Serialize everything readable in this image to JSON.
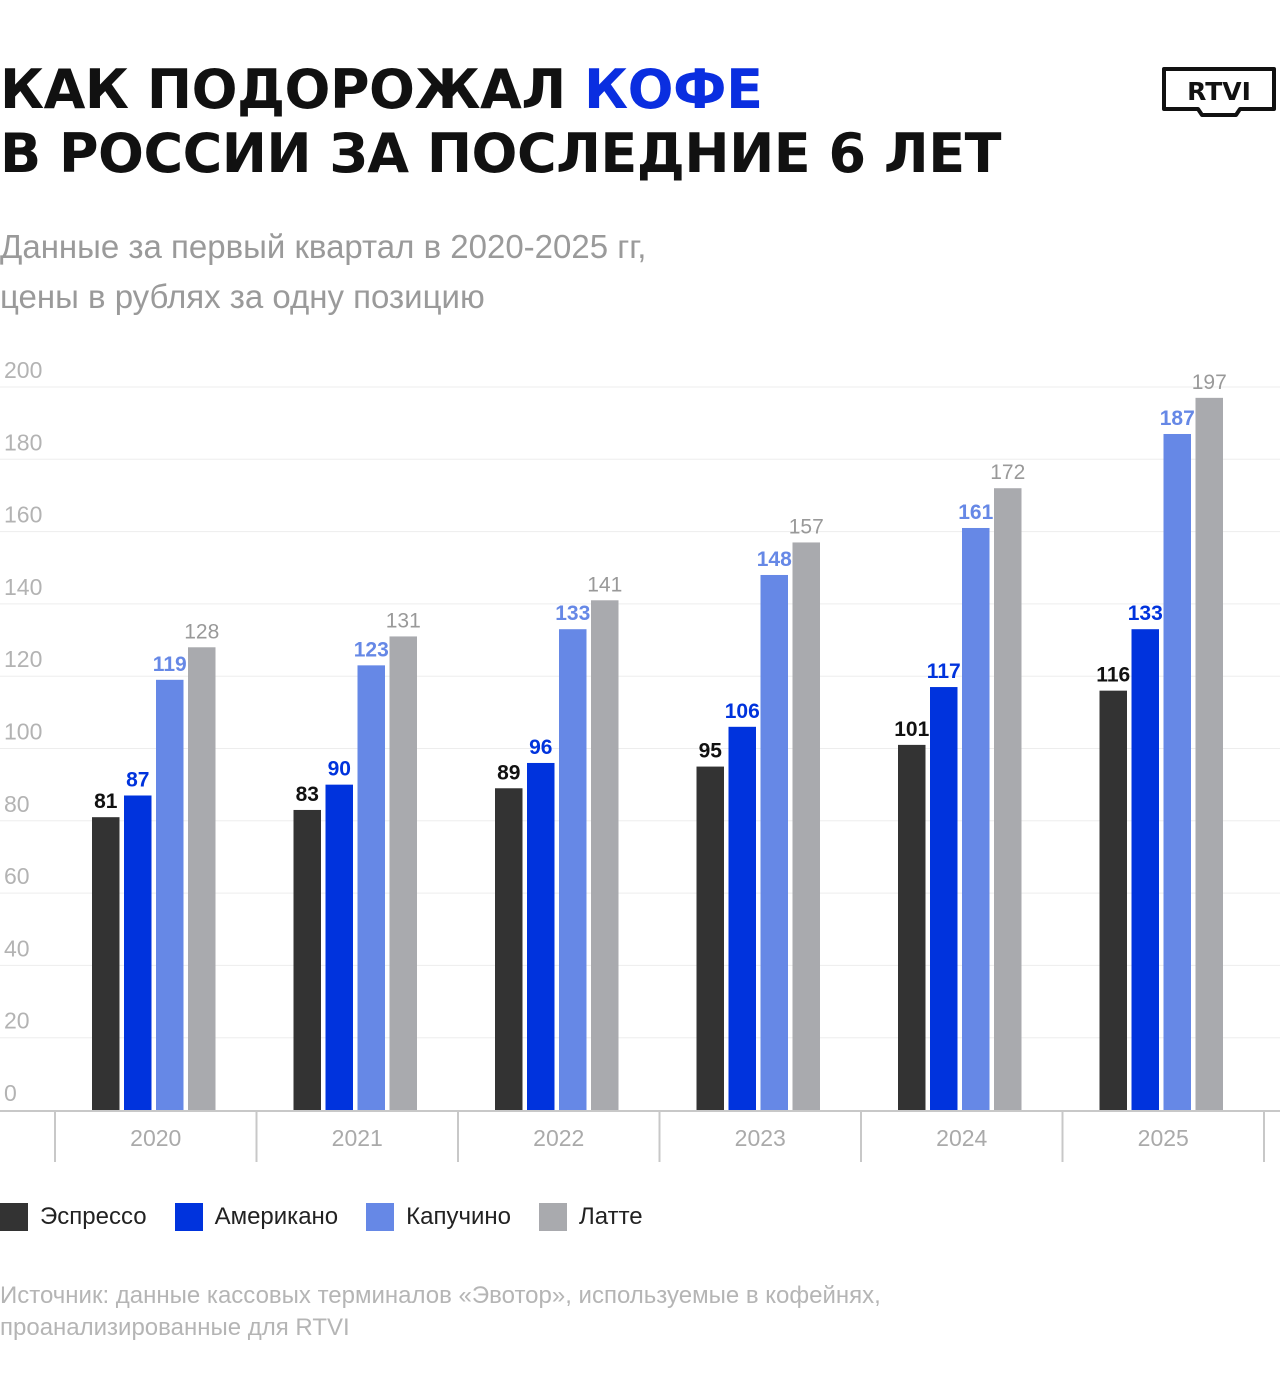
{
  "header": {
    "title_line1_prefix": "КАК ПОДОРОЖАЛ ",
    "title_line1_accent": "КОФЕ",
    "title_line2": "В РОССИИ ЗА ПОСЛЕДНИЕ 6 ЛЕТ",
    "subtitle_line1": "Данные за первый квартал в 2020-2025 гг,",
    "subtitle_line2": "цены в рублях за одну позицию",
    "logo_text": "RTVI"
  },
  "colors": {
    "title": "#111111",
    "accent": "#0a2ee0",
    "espresso": "#333333",
    "americano": "#0033dd",
    "cappuccino": "#6688e6",
    "latte": "#a9aaae",
    "espresso_label": "#111111",
    "americano_label": "#0033dd",
    "cappuccino_label": "#6688e6",
    "latte_label": "#999999"
  },
  "chart_data": {
    "type": "bar",
    "categories": [
      "2020",
      "2021",
      "2022",
      "2023",
      "2024",
      "2025"
    ],
    "series": [
      {
        "name": "Эспрессо",
        "color_key": "espresso",
        "values": [
          81,
          83,
          89,
          95,
          101,
          116
        ]
      },
      {
        "name": "Американо",
        "color_key": "americano",
        "values": [
          87,
          90,
          96,
          106,
          117,
          133
        ]
      },
      {
        "name": "Капучино",
        "color_key": "cappuccino",
        "values": [
          119,
          123,
          133,
          148,
          161,
          187
        ]
      },
      {
        "name": "Латте",
        "color_key": "latte",
        "values": [
          128,
          131,
          141,
          157,
          172,
          197
        ]
      }
    ],
    "ylim": [
      0,
      200
    ],
    "yticks": [
      0,
      20,
      40,
      60,
      80,
      100,
      120,
      140,
      160,
      180,
      200
    ],
    "grid": true,
    "legend_position": "bottom-left"
  },
  "footer": {
    "source_line1": "Источник: данные кассовых терминалов «Эвотор», используемые в кофейнях,",
    "source_line2": "проанализированные для RTVI"
  }
}
